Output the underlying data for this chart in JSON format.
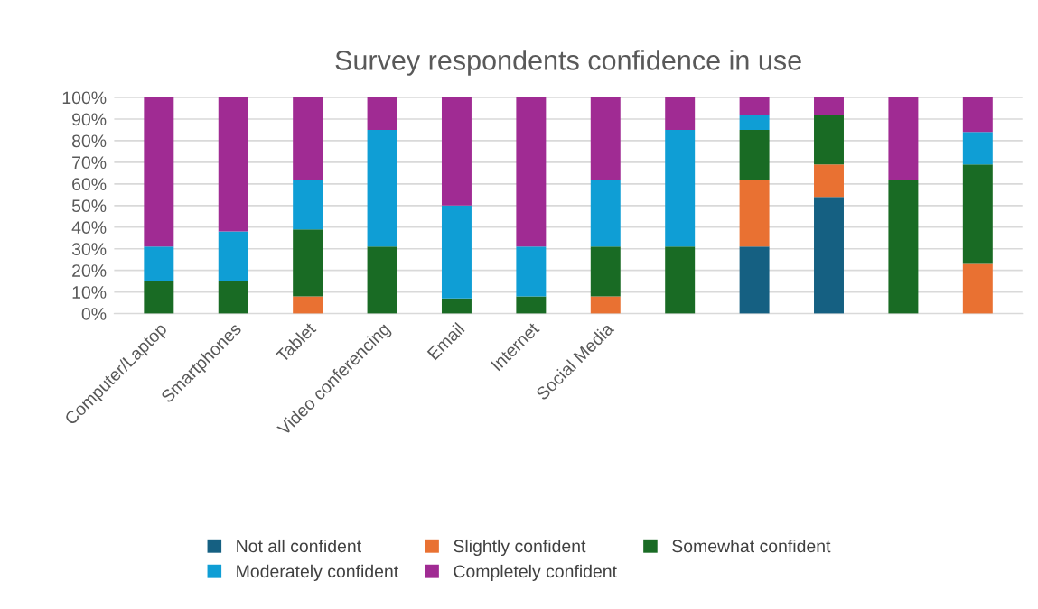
{
  "chart_data": {
    "type": "bar",
    "stacked": true,
    "title": "Survey respondents confidence in use",
    "categories": [
      "Computer/Laptop",
      "Smartphones",
      "Tablet",
      "Video conferencing",
      "Email",
      "Internet",
      "Social Media",
      null,
      null,
      null,
      null,
      null
    ],
    "series": [
      {
        "name": "Not all confident",
        "color": "#156082",
        "values": [
          0,
          0,
          0,
          0,
          0,
          0,
          0,
          0,
          31,
          54,
          0,
          0
        ]
      },
      {
        "name": "Slightly confident",
        "color": "#e97132",
        "values": [
          0,
          0,
          8,
          0,
          0,
          0,
          8,
          0,
          31,
          15,
          0,
          23
        ]
      },
      {
        "name": "Somewhat confident",
        "color": "#196b24",
        "values": [
          15,
          15,
          31,
          31,
          7,
          8,
          23,
          31,
          23,
          23,
          62,
          46
        ]
      },
      {
        "name": "Moderately confident",
        "color": "#0f9ed5",
        "values": [
          16,
          23,
          23,
          54,
          43,
          23,
          31,
          54,
          7,
          0,
          0,
          15
        ]
      },
      {
        "name": "Completely confident",
        "color": "#a02b93",
        "values": [
          69,
          62,
          38,
          15,
          50,
          69,
          38,
          15,
          8,
          8,
          38,
          16
        ]
      }
    ],
    "ylim": [
      0,
      100
    ],
    "yticks": [
      {
        "value": 0,
        "label": "0%"
      },
      {
        "value": 10,
        "label": "10%"
      },
      {
        "value": 20,
        "label": "20%"
      },
      {
        "value": 30,
        "label": "30%"
      },
      {
        "value": 40,
        "label": "40%"
      },
      {
        "value": 50,
        "label": "50%"
      },
      {
        "value": 60,
        "label": "60%"
      },
      {
        "value": 70,
        "label": "70%"
      },
      {
        "value": 80,
        "label": "80%"
      },
      {
        "value": 90,
        "label": "90%"
      },
      {
        "value": 100,
        "label": "100%"
      }
    ],
    "grid": "y",
    "legend": "bottom"
  }
}
